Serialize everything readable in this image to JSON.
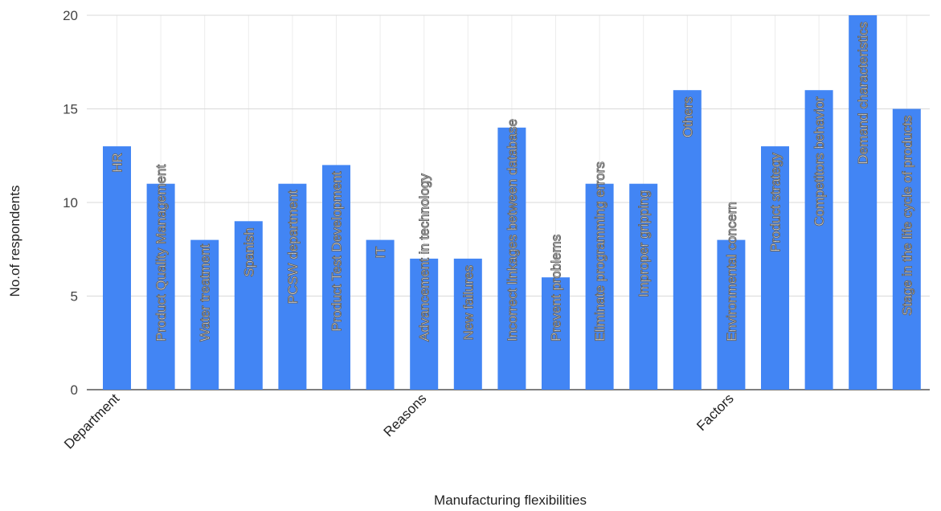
{
  "chart_data": {
    "type": "bar",
    "xlabel": "Manufacturing flexibilities",
    "ylabel": "No.of respondents",
    "ylim": [
      0,
      20
    ],
    "yticks": [
      0,
      5,
      10,
      15,
      20
    ],
    "grid": true,
    "bar_color": "#4285f4",
    "groups": [
      "Department",
      "Reasons",
      "Factors"
    ],
    "categories": [
      "HR",
      "Product Quality Management",
      "Water treatment",
      "Spanish",
      "PCSW department",
      "Product Test Development",
      "IT",
      "Advancement in technology",
      "New failures",
      "Incorrect linkages between database",
      "Prevent problems",
      "Eliminate programming errors",
      "Improper gripping",
      "Others",
      "Environmental concern",
      "Product strategy",
      "Competitors behavior",
      "Demand characteristics",
      "Stage in the life cycle of products"
    ],
    "values": [
      13,
      11,
      8,
      9,
      11,
      12,
      8,
      7,
      7,
      14,
      6,
      11,
      11,
      16,
      8,
      13,
      16,
      20,
      15
    ]
  }
}
